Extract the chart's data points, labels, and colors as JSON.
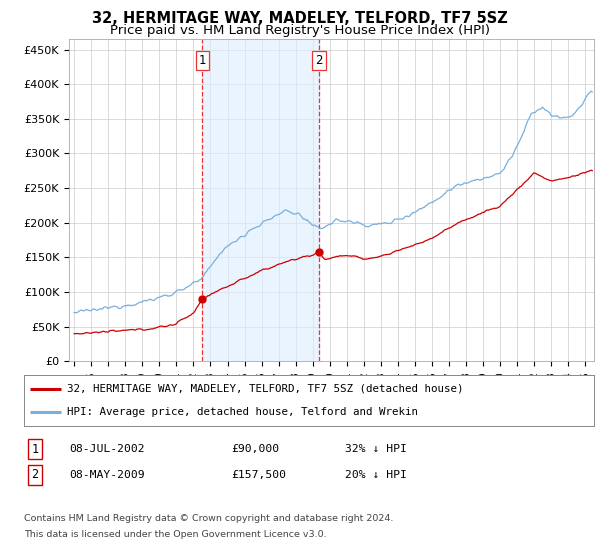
{
  "title": "32, HERMITAGE WAY, MADELEY, TELFORD, TF7 5SZ",
  "subtitle": "Price paid vs. HM Land Registry's House Price Index (HPI)",
  "title_fontsize": 10.5,
  "subtitle_fontsize": 9.5,
  "ylabel_values": [
    0,
    50000,
    100000,
    150000,
    200000,
    250000,
    300000,
    350000,
    400000,
    450000
  ],
  "ylabel_labels": [
    "£0",
    "£50K",
    "£100K",
    "£150K",
    "£200K",
    "£250K",
    "£300K",
    "£350K",
    "£400K",
    "£450K"
  ],
  "ylim": [
    0,
    465000
  ],
  "xlim_start": 1994.7,
  "xlim_end": 2025.5,
  "xtick_years": [
    1995,
    1996,
    1997,
    1998,
    1999,
    2000,
    2001,
    2002,
    2003,
    2004,
    2005,
    2006,
    2007,
    2008,
    2009,
    2010,
    2011,
    2012,
    2013,
    2014,
    2015,
    2016,
    2017,
    2018,
    2019,
    2020,
    2021,
    2022,
    2023,
    2024,
    2025
  ],
  "transaction1_x": 2002.52,
  "transaction1_y": 90000,
  "transaction2_x": 2009.36,
  "transaction2_y": 157500,
  "vline1_x": 2002.52,
  "vline2_x": 2009.36,
  "shade_color": "#ddeeff",
  "shade_alpha": 0.6,
  "red_line_color": "#cc0000",
  "blue_line_color": "#7aafdc",
  "vline_color": "#ee3333",
  "grid_color": "#cccccc",
  "legend1_label": "32, HERMITAGE WAY, MADELEY, TELFORD, TF7 5SZ (detached house)",
  "legend2_label": "HPI: Average price, detached house, Telford and Wrekin",
  "table_row1": [
    "1",
    "08-JUL-2002",
    "£90,000",
    "32% ↓ HPI"
  ],
  "table_row2": [
    "2",
    "08-MAY-2009",
    "£157,500",
    "20% ↓ HPI"
  ],
  "footer1": "Contains HM Land Registry data © Crown copyright and database right 2024.",
  "footer2": "This data is licensed under the Open Government Licence v3.0.",
  "bg_color": "#ffffff"
}
